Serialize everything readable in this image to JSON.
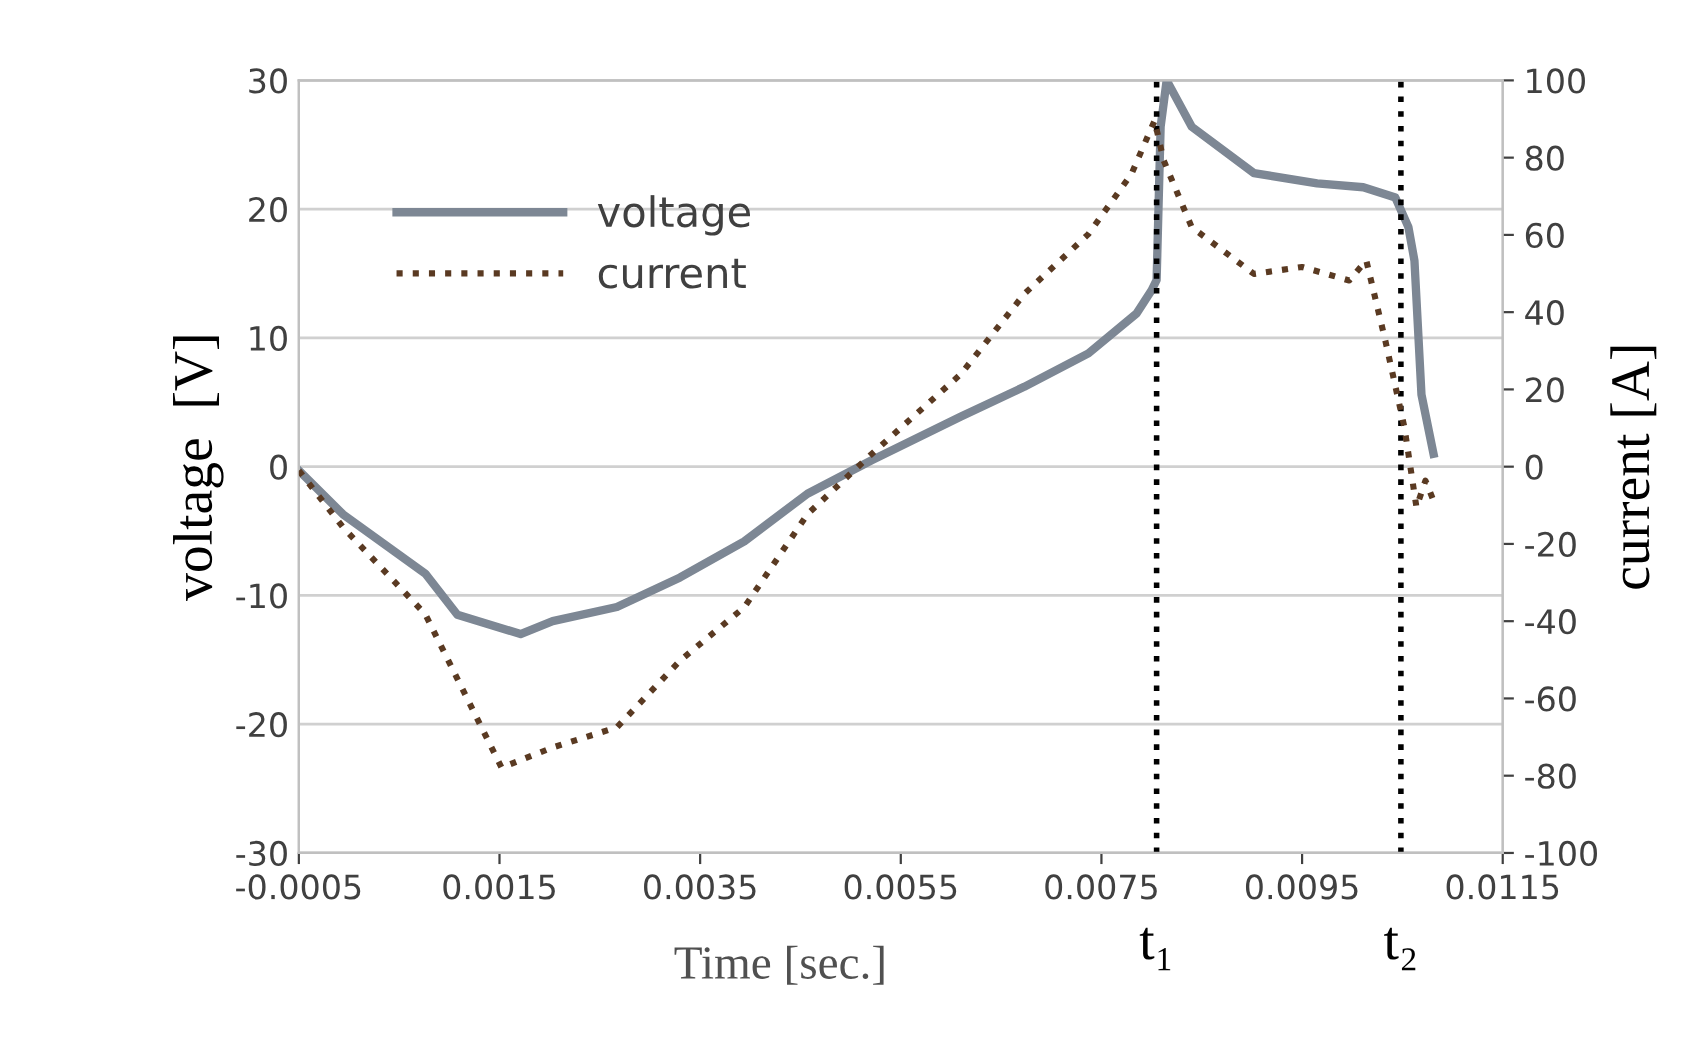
{
  "chart_data": {
    "type": "line",
    "xlabel": "Time [sec.]",
    "ylabel": "voltage  [V]",
    "y2label": "current [A]",
    "xlim": [
      -0.0005,
      0.0115
    ],
    "xticks": [
      -0.0005,
      0.0015,
      0.0035,
      0.0055,
      0.0075,
      0.0095,
      0.0115
    ],
    "ylim": [
      -30,
      30
    ],
    "yticks": [
      -30,
      -20,
      -10,
      0,
      10,
      20,
      30
    ],
    "y2lim": [
      -100,
      100
    ],
    "y2ticks": [
      -100,
      -80,
      -60,
      -40,
      -20,
      0,
      20,
      40,
      60,
      80,
      100
    ],
    "grid": "y",
    "legend": "top left",
    "series": [
      {
        "name": "voltage",
        "color": "#7d8794",
        "line_style": "solid",
        "x": [
          -0.0005,
          -6e-05,
          0.00076,
          0.00108,
          0.00171,
          0.00203,
          0.00267,
          0.0033,
          0.00394,
          0.00457,
          0.00521,
          0.0061,
          0.00673,
          0.00737,
          0.00785,
          0.008,
          0.00805,
          0.00809,
          0.00815,
          0.0084,
          0.00902,
          0.00965,
          0.01011,
          0.01043,
          0.01056,
          0.01062,
          0.01069,
          0.01081
        ],
        "values": [
          -0.3,
          -3.7,
          -8.3,
          -11.5,
          -13.0,
          -12.0,
          -10.9,
          -8.6,
          -5.8,
          -2.1,
          0.5,
          3.9,
          6.2,
          8.8,
          11.9,
          13.7,
          14.5,
          26.4,
          30,
          26.4,
          22.8,
          22.0,
          21.7,
          20.9,
          18.6,
          16.0,
          5.6,
          1.0
        ]
      },
      {
        "name": "current",
        "color": "#5a3a22",
        "line_style": "dotted",
        "axis": "y2",
        "x": [
          -0.0005,
          -6e-05,
          0.00076,
          0.00152,
          0.00203,
          0.00267,
          0.0033,
          0.00394,
          0.00457,
          0.00521,
          0.0061,
          0.00673,
          0.00737,
          0.0078,
          0.00803,
          0.00812,
          0.0084,
          0.00902,
          0.0095,
          0.00997,
          0.01014,
          0.01033,
          0.01052,
          0.01064,
          0.01073,
          0.01081
        ],
        "values": [
          -1.0,
          -15.7,
          -38.2,
          -77.9,
          -72.7,
          -67.5,
          -50.2,
          -36.4,
          -12.3,
          3.3,
          24.0,
          44.7,
          60.2,
          75.8,
          89.6,
          79.3,
          62.0,
          49.9,
          51.7,
          48.2,
          53.4,
          32.6,
          10.2,
          -10.5,
          -3.6,
          -8.8
        ]
      }
    ],
    "ref_lines": [
      {
        "axis": "x",
        "value": 0.00805,
        "label": "t₁",
        "color": "#000000",
        "line_style": "dotted"
      },
      {
        "axis": "x",
        "value": 0.010485,
        "label": "t₂",
        "color": "#000000",
        "line_style": "dotted"
      }
    ]
  }
}
